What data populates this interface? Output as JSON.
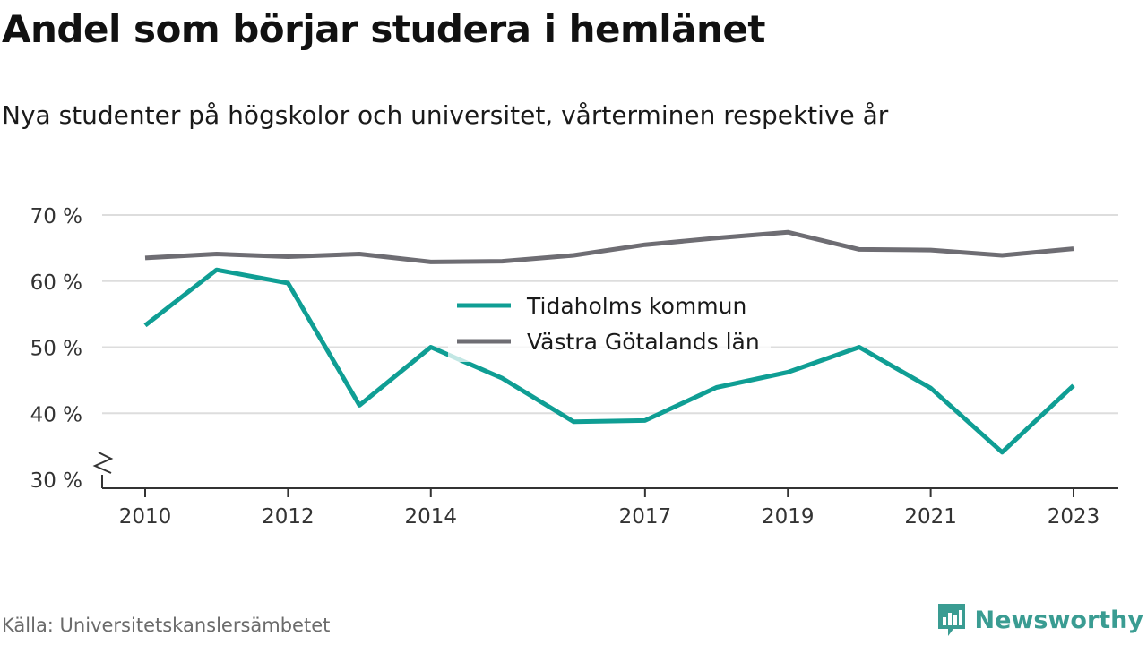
{
  "header": {
    "title": "Andel som börjar studera i hemlänet",
    "subtitle": "Nya studenter på högskolor och universitet, vårterminen respektive år"
  },
  "footer": {
    "source": "Källa: Universitetskanslersämbetet",
    "brand": "Newsworthy"
  },
  "colors": {
    "tidaholm": "#0f9e94",
    "vastra_gotaland": "#6e6d73",
    "grid": "#dddddd",
    "axis": "#333333",
    "brand": "#3a9c92"
  },
  "icons": {
    "brand": "newsworthy-logo-icon",
    "axis_break": "axis-break-icon"
  },
  "chart_data": {
    "type": "line",
    "title": "Andel som börjar studera i hemlänet",
    "subtitle": "Nya studenter på högskolor och universitet, vårterminen respektive år",
    "x": [
      2010,
      2011,
      2012,
      2013,
      2014,
      2015,
      2016,
      2017,
      2018,
      2019,
      2020,
      2021,
      2022,
      2023
    ],
    "x_ticks": [
      2010,
      2012,
      2014,
      2017,
      2019,
      2021,
      2023
    ],
    "y_ticks": [
      30,
      40,
      50,
      60,
      70
    ],
    "y_tick_labels": [
      "30 %",
      "40 %",
      "50 %",
      "60 %",
      "70 %"
    ],
    "ylim": [
      30,
      70
    ],
    "y_axis_break": true,
    "grid": true,
    "legend_position": "center",
    "series": [
      {
        "name": "Tidaholms kommun",
        "color": "#0f9e94",
        "values": [
          53.3,
          61.7,
          59.7,
          41.2,
          50.0,
          45.3,
          38.7,
          38.9,
          43.9,
          46.2,
          50.0,
          43.8,
          34.1,
          44.2
        ]
      },
      {
        "name": "Västra Götalands län",
        "color": "#6e6d73",
        "values": [
          63.5,
          64.1,
          63.7,
          64.1,
          62.9,
          63.0,
          63.9,
          65.5,
          66.5,
          67.4,
          64.8,
          64.7,
          63.9,
          64.9
        ]
      }
    ]
  }
}
